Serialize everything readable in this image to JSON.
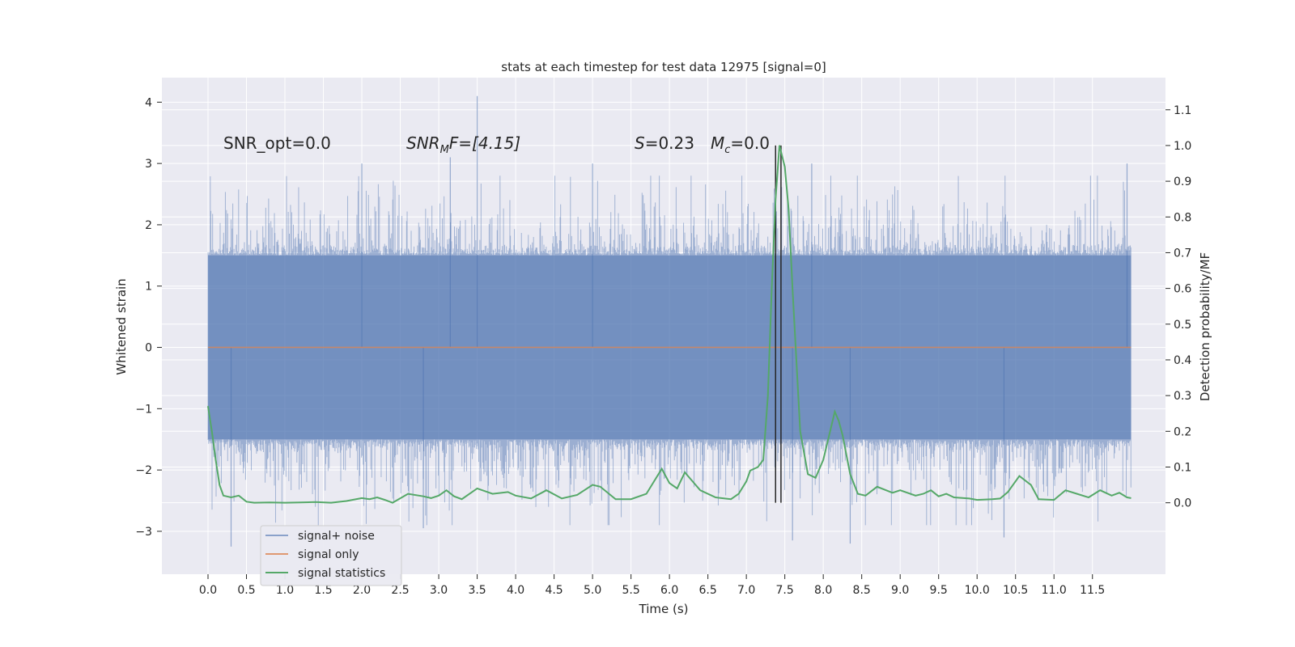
{
  "chart_data": {
    "type": "line",
    "title": "stats at each timestep for test data 12975 [signal=0]",
    "xlabel": "Time (s)",
    "ylabel": "Whitened strain",
    "ylabel_right": "Detection probability/MF",
    "xlim": [
      -0.6,
      12.45
    ],
    "ylim": [
      -3.7,
      4.4
    ],
    "ylim_right": [
      -0.2,
      1.19
    ],
    "x_ticks": [
      "0.0",
      "0.5",
      "1.0",
      "1.5",
      "2.0",
      "2.5",
      "3.0",
      "3.5",
      "4.0",
      "4.5",
      "5.0",
      "5.5",
      "6.0",
      "6.5",
      "7.0",
      "7.5",
      "8.0",
      "8.5",
      "9.0",
      "9.5",
      "10.0",
      "10.5",
      "11.0",
      "11.5"
    ],
    "y_ticks": [
      "4",
      "3",
      "2",
      "1",
      "0",
      "−1",
      "−2",
      "−3"
    ],
    "y_ticks_right": [
      "1.1",
      "1.0",
      "0.9",
      "0.8",
      "0.7",
      "0.6",
      "0.5",
      "0.4",
      "0.3",
      "0.2",
      "0.1",
      "0.0"
    ],
    "annotations": {
      "snr_opt": "SNR_opt=0.0",
      "snr_mf_base": "SNR",
      "snr_mf_sub": "M",
      "snr_mf_rest": "F=[4.15]",
      "s_var": "S",
      "s_val": "=0.23",
      "mc_var": "M",
      "mc_sub": "c",
      "mc_val": "=0.0"
    },
    "vertical_lines": [
      7.38,
      7.45
    ],
    "noise_envelope": {
      "x_range": [
        0.0,
        12.0
      ],
      "upper_typical": 1.5,
      "lower_typical": -1.5,
      "notable_peaks": [
        {
          "x": 3.5,
          "y": 4.1
        },
        {
          "x": 3.15,
          "y": 3.1
        },
        {
          "x": 2.0,
          "y": 3.0
        },
        {
          "x": 11.95,
          "y": 3.0
        },
        {
          "x": 5.0,
          "y": 3.0
        },
        {
          "x": 7.85,
          "y": 3.0
        }
      ],
      "notable_troughs": [
        {
          "x": 0.3,
          "y": -3.25
        },
        {
          "x": 7.6,
          "y": -3.15
        },
        {
          "x": 8.35,
          "y": -3.2
        },
        {
          "x": 10.35,
          "y": -3.1
        },
        {
          "x": 2.8,
          "y": -2.95
        }
      ]
    },
    "series": [
      {
        "name": "signal+ noise",
        "color": "#4c72b0"
      },
      {
        "name": "signal only",
        "color": "#dd8452",
        "y": 0.0
      },
      {
        "name": "signal statistics",
        "color": "#55a868",
        "axis": "right",
        "points": [
          [
            0.0,
            0.27
          ],
          [
            0.05,
            0.2
          ],
          [
            0.1,
            0.12
          ],
          [
            0.15,
            0.05
          ],
          [
            0.2,
            0.02
          ],
          [
            0.3,
            0.015
          ],
          [
            0.4,
            0.02
          ],
          [
            0.5,
            0.003
          ],
          [
            0.6,
            0.0
          ],
          [
            0.8,
            0.001
          ],
          [
            1.0,
            0.0
          ],
          [
            1.2,
            0.001
          ],
          [
            1.4,
            0.002
          ],
          [
            1.6,
            0.0
          ],
          [
            1.8,
            0.005
          ],
          [
            2.0,
            0.013
          ],
          [
            2.1,
            0.01
          ],
          [
            2.2,
            0.015
          ],
          [
            2.3,
            0.008
          ],
          [
            2.4,
            0.0
          ],
          [
            2.6,
            0.025
          ],
          [
            2.8,
            0.018
          ],
          [
            2.9,
            0.013
          ],
          [
            3.0,
            0.02
          ],
          [
            3.1,
            0.035
          ],
          [
            3.2,
            0.018
          ],
          [
            3.3,
            0.01
          ],
          [
            3.5,
            0.04
          ],
          [
            3.7,
            0.025
          ],
          [
            3.9,
            0.03
          ],
          [
            4.0,
            0.02
          ],
          [
            4.2,
            0.012
          ],
          [
            4.4,
            0.035
          ],
          [
            4.6,
            0.012
          ],
          [
            4.8,
            0.022
          ],
          [
            5.0,
            0.05
          ],
          [
            5.1,
            0.045
          ],
          [
            5.3,
            0.01
          ],
          [
            5.5,
            0.01
          ],
          [
            5.7,
            0.025
          ],
          [
            5.8,
            0.06
          ],
          [
            5.9,
            0.095
          ],
          [
            6.0,
            0.055
          ],
          [
            6.1,
            0.04
          ],
          [
            6.2,
            0.085
          ],
          [
            6.3,
            0.06
          ],
          [
            6.4,
            0.035
          ],
          [
            6.6,
            0.015
          ],
          [
            6.8,
            0.01
          ],
          [
            6.9,
            0.025
          ],
          [
            7.0,
            0.06
          ],
          [
            7.05,
            0.09
          ],
          [
            7.15,
            0.1
          ],
          [
            7.22,
            0.12
          ],
          [
            7.28,
            0.3
          ],
          [
            7.33,
            0.6
          ],
          [
            7.38,
            0.85
          ],
          [
            7.43,
            1.0
          ],
          [
            7.5,
            0.94
          ],
          [
            7.55,
            0.82
          ],
          [
            7.6,
            0.6
          ],
          [
            7.65,
            0.4
          ],
          [
            7.7,
            0.2
          ],
          [
            7.8,
            0.08
          ],
          [
            7.9,
            0.07
          ],
          [
            8.0,
            0.12
          ],
          [
            8.1,
            0.21
          ],
          [
            8.15,
            0.255
          ],
          [
            8.2,
            0.23
          ],
          [
            8.25,
            0.19
          ],
          [
            8.35,
            0.08
          ],
          [
            8.45,
            0.025
          ],
          [
            8.55,
            0.02
          ],
          [
            8.7,
            0.045
          ],
          [
            8.9,
            0.028
          ],
          [
            9.0,
            0.035
          ],
          [
            9.2,
            0.02
          ],
          [
            9.3,
            0.025
          ],
          [
            9.4,
            0.035
          ],
          [
            9.5,
            0.018
          ],
          [
            9.6,
            0.025
          ],
          [
            9.7,
            0.015
          ],
          [
            9.9,
            0.012
          ],
          [
            10.0,
            0.008
          ],
          [
            10.2,
            0.01
          ],
          [
            10.3,
            0.012
          ],
          [
            10.4,
            0.03
          ],
          [
            10.55,
            0.075
          ],
          [
            10.7,
            0.05
          ],
          [
            10.8,
            0.01
          ],
          [
            11.0,
            0.008
          ],
          [
            11.15,
            0.035
          ],
          [
            11.3,
            0.025
          ],
          [
            11.45,
            0.015
          ],
          [
            11.6,
            0.035
          ],
          [
            11.75,
            0.02
          ],
          [
            11.85,
            0.028
          ],
          [
            11.95,
            0.015
          ],
          [
            12.0,
            0.013
          ]
        ]
      }
    ],
    "legend_position": "lower-left"
  },
  "colors": {
    "plot_bg": "#eaeaf2",
    "grid": "#ffffff",
    "noise": "#4c72b0",
    "signal": "#dd8452",
    "stats": "#55a868",
    "vline": "#262626"
  }
}
